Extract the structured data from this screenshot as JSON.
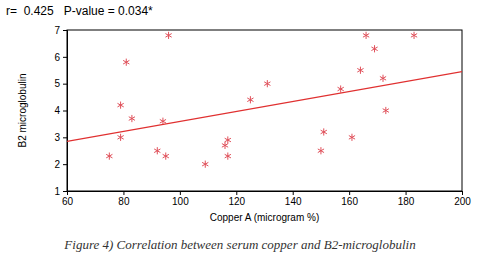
{
  "chart_data": {
    "type": "scatter",
    "title": "Figure 4) Correlation between serum copper and B2-microglobulin",
    "annotations": [
      "r=  0.425   P-value = 0.034*"
    ],
    "x_label": "Copper A (microgram %)",
    "y_label": "B2 microglobulin",
    "xlim": [
      60,
      200
    ],
    "xticks": [
      60,
      80,
      100,
      120,
      140,
      160,
      180,
      200
    ],
    "ylim": [
      1,
      7
    ],
    "yticks": [
      1,
      2,
      3,
      4,
      5,
      6,
      7
    ],
    "grid": false,
    "series": [
      {
        "type": "scatter",
        "marker": "asterisk",
        "color": "#e0505a",
        "x": [
          75,
          79,
          79,
          81,
          83,
          92,
          94,
          95,
          96,
          109,
          116,
          117,
          117,
          125,
          131,
          150,
          151,
          157,
          161,
          164,
          166,
          169,
          172,
          173,
          183
        ],
        "values": [
          2.3,
          3.0,
          4.2,
          5.8,
          3.7,
          2.5,
          3.6,
          2.3,
          6.8,
          2.0,
          2.7,
          2.9,
          2.3,
          4.4,
          5.0,
          2.5,
          3.2,
          4.8,
          3.0,
          5.5,
          6.8,
          6.3,
          5.2,
          4.0,
          6.8
        ]
      },
      {
        "type": "line",
        "line_style": "solid",
        "color": "#e03030",
        "x": [
          60,
          200
        ],
        "values": [
          2.85,
          5.45
        ]
      }
    ]
  }
}
